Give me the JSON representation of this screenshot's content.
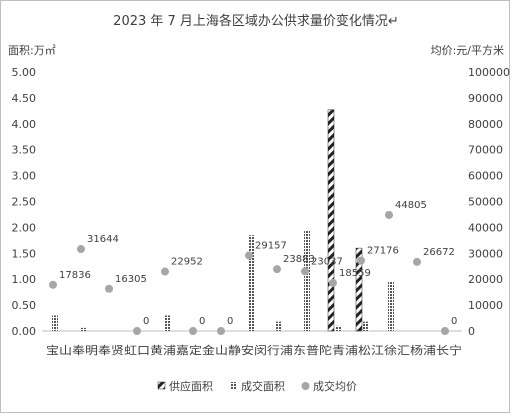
{
  "chart_data": {
    "type": "bar",
    "title": "2023 年 7 月上海各区域办公供求量价变化情况↵",
    "ylabel_left": "面积:万㎡",
    "ylabel_right": "均价:元/平方米",
    "ylim_left": [
      0,
      5
    ],
    "ylim_right": [
      0,
      100000
    ],
    "y_ticks_left": [
      "0.00",
      "0.50",
      "1.00",
      "1.50",
      "2.00",
      "2.50",
      "3.00",
      "3.50",
      "4.00",
      "4.50",
      "5.00"
    ],
    "y_ticks_right": [
      "0",
      "10000",
      "20000",
      "30000",
      "40000",
      "50000",
      "60000",
      "70000",
      "80000",
      "90000",
      "100000"
    ],
    "categories": [
      "宝山",
      "奉贤",
      "虹口",
      "黄浦",
      "嘉定",
      "金山",
      "静安",
      "闵行",
      "浦东",
      "普陀",
      "青浦",
      "松江",
      "徐汇",
      "杨浦",
      "长宁"
    ],
    "x_axis_text": "宝山奉明奉贤虹口黄浦嘉定金山静安闵行浦东普陀青浦松江徐汇杨浦长宁",
    "series": [
      {
        "name": "供应面积",
        "axis": "left",
        "values": [
          0,
          0,
          0,
          0,
          0,
          0,
          0,
          0,
          0,
          0,
          4.27,
          1.6,
          0,
          0,
          0
        ]
      },
      {
        "name": "成交面积",
        "axis": "left",
        "values": [
          0.3,
          0.06,
          0,
          0,
          0.3,
          0,
          0,
          1.85,
          0.18,
          1.95,
          0.1,
          0.18,
          0.95,
          0,
          0
        ]
      },
      {
        "name": "成交均价",
        "axis": "right",
        "values": [
          17836,
          31644,
          16305,
          0,
          22952,
          0,
          0,
          29157,
          23883,
          23037,
          18559,
          27176,
          44805,
          26672,
          0
        ]
      }
    ],
    "data_labels": [
      "17836",
      "31644",
      "16305",
      "0",
      "22952",
      "0",
      "0",
      "29157",
      "23883",
      "23037",
      "18559",
      "27176",
      "44805",
      "26672",
      "0"
    ],
    "legend_position": "bottom",
    "grid": false
  }
}
